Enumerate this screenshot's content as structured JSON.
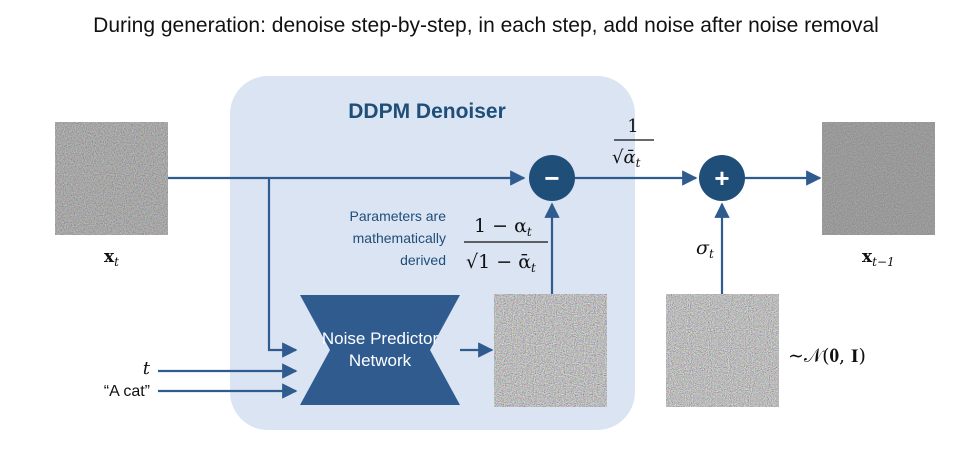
{
  "title": "During generation: denoise step-by-step, in each step, add noise after noise removal",
  "denoiser_label": "DDPM Denoiser",
  "network_label_line1": "Noise Predictor",
  "network_label_line2": "Network",
  "params_note_line1": "Parameters are",
  "params_note_line2": "mathematically",
  "params_note_line3": "derived",
  "minus_symbol": "−",
  "plus_symbol": "+",
  "input_image_label": "x",
  "input_image_sub": "t",
  "output_image_label": "x",
  "output_image_sub": "t−1",
  "input_t_label": "t",
  "input_prompt_label": "“A cat”",
  "scale_coef_num": "1",
  "scale_coef_den": "√ᾱ",
  "scale_coef_den_sub": "t",
  "noise_coef_num": "1 − α",
  "noise_coef_num_sub": "t",
  "noise_coef_den": "√1 − ᾱ",
  "noise_coef_den_sub": "t",
  "sigma_label": "σ",
  "sigma_sub": "t",
  "gaussian_label": "∼𝒩(𝟎, 𝐈)",
  "colors": {
    "flow": "#2f5b8f",
    "node": "#1f4e79",
    "region": "#dbe4f3",
    "title_text": "#1f4e79"
  }
}
